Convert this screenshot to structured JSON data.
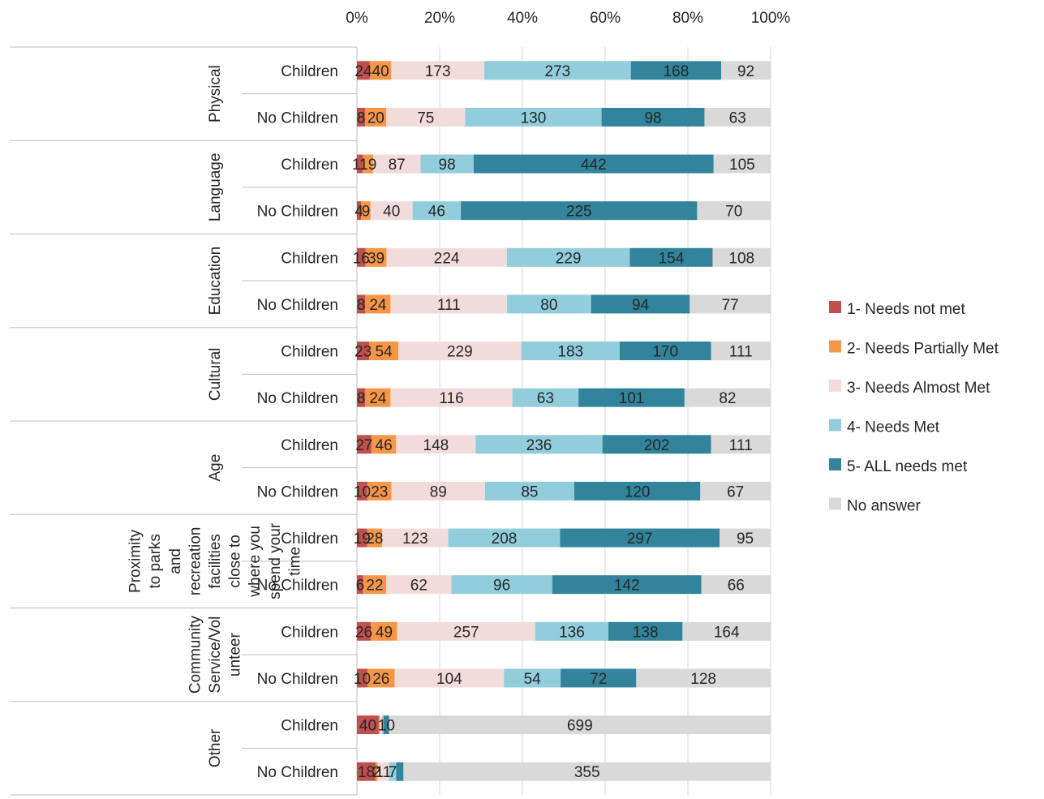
{
  "chart_data": {
    "type": "bar",
    "orientation": "horizontal",
    "stacked": "percent",
    "x_ticks": [
      "0%",
      "20%",
      "40%",
      "60%",
      "80%",
      "100%"
    ],
    "xlim": [
      0,
      100
    ],
    "grid": true,
    "legend_position": "right",
    "groups": [
      {
        "label_lines": [
          "Physical"
        ]
      },
      {
        "label_lines": [
          "Language"
        ]
      },
      {
        "label_lines": [
          "Education"
        ]
      },
      {
        "label_lines": [
          "Cultural"
        ]
      },
      {
        "label_lines": [
          "Age"
        ]
      },
      {
        "label_lines": [
          "Proximity",
          "to parks",
          "and",
          "recreation",
          "facilities",
          "close to",
          "where you",
          "spend your",
          "time"
        ]
      },
      {
        "label_lines": [
          "Community",
          "Service/Vol",
          "unteer"
        ]
      },
      {
        "label_lines": [
          "Other"
        ]
      }
    ],
    "rows": [
      {
        "group": 0,
        "label": "Children",
        "values": [
          24,
          40,
          173,
          273,
          168,
          92
        ],
        "labels": [
          "24",
          "40",
          "173",
          "273",
          "168",
          "92"
        ]
      },
      {
        "group": 0,
        "label": "No Children",
        "values": [
          8,
          20,
          75,
          130,
          98,
          63
        ],
        "labels": [
          "8",
          "20",
          "75",
          "130",
          "98",
          "63"
        ]
      },
      {
        "group": 1,
        "label": "Children",
        "values": [
          11,
          19,
          87,
          98,
          442,
          105
        ],
        "labels": [
          "11",
          "19",
          "87",
          "98",
          "442",
          "105"
        ]
      },
      {
        "group": 1,
        "label": "No Children",
        "values": [
          4,
          9,
          40,
          46,
          225,
          70
        ],
        "labels": [
          "4",
          "9",
          "40",
          "46",
          "225",
          "70"
        ]
      },
      {
        "group": 2,
        "label": "Children",
        "values": [
          16,
          39,
          224,
          229,
          154,
          108
        ],
        "labels": [
          "16",
          "39",
          "224",
          "229",
          "154",
          "108"
        ]
      },
      {
        "group": 2,
        "label": "No Children",
        "values": [
          8,
          24,
          111,
          80,
          94,
          77
        ],
        "labels": [
          "8",
          "24",
          "111",
          "80",
          "94",
          "77"
        ]
      },
      {
        "group": 3,
        "label": "Children",
        "values": [
          23,
          54,
          229,
          183,
          170,
          111
        ],
        "labels": [
          "23",
          "54",
          "229",
          "183",
          "170",
          "111"
        ]
      },
      {
        "group": 3,
        "label": "No Children",
        "values": [
          8,
          24,
          116,
          63,
          101,
          82
        ],
        "labels": [
          "8",
          "24",
          "116",
          "63",
          "101",
          "82"
        ]
      },
      {
        "group": 4,
        "label": "Children",
        "values": [
          27,
          46,
          148,
          236,
          202,
          111
        ],
        "labels": [
          "27",
          "46",
          "148",
          "236",
          "202",
          "111"
        ]
      },
      {
        "group": 4,
        "label": "No Children",
        "values": [
          10,
          23,
          89,
          85,
          120,
          67
        ],
        "labels": [
          "10",
          "23",
          "89",
          "85",
          "120",
          "67"
        ]
      },
      {
        "group": 5,
        "label": "Children",
        "values": [
          19,
          28,
          123,
          208,
          297,
          95
        ],
        "labels": [
          "19",
          "28",
          "123",
          "208",
          "297",
          "95"
        ]
      },
      {
        "group": 5,
        "label": "No Children",
        "values": [
          6,
          22,
          62,
          96,
          142,
          66
        ],
        "labels": [
          "6",
          "22",
          "62",
          "96",
          "142",
          "66"
        ]
      },
      {
        "group": 6,
        "label": "Children",
        "values": [
          26,
          49,
          257,
          136,
          138,
          164
        ],
        "labels": [
          "26",
          "49",
          "257",
          "136",
          "138",
          "164"
        ]
      },
      {
        "group": 6,
        "label": "No Children",
        "values": [
          10,
          26,
          104,
          54,
          72,
          128
        ],
        "labels": [
          "10",
          "26",
          "104",
          "54",
          "72",
          "128"
        ]
      },
      {
        "group": 7,
        "label": "Children",
        "values": [
          40,
          2,
          4,
          3,
          10,
          699
        ],
        "labels": [
          "40",
          "",
          "",
          "",
          "10",
          "699"
        ]
      },
      {
        "group": 7,
        "label": "No Children",
        "values": [
          18,
          2,
          11,
          7,
          7,
          355
        ],
        "labels": [
          "18",
          "2",
          "11",
          "7",
          "",
          "355"
        ]
      }
    ],
    "series": [
      {
        "name": "1- Needs not met",
        "color": "#c0504d"
      },
      {
        "name": "2- Needs Partially Met",
        "color": "#f79646"
      },
      {
        "name": "3- Needs Almost Met",
        "color": "#f2dcdb"
      },
      {
        "name": "4- Needs Met",
        "color": "#92cddc"
      },
      {
        "name": "5- ALL needs met",
        "color": "#31849b"
      },
      {
        "name": "No answer",
        "color": "#d9d9d9"
      }
    ]
  }
}
